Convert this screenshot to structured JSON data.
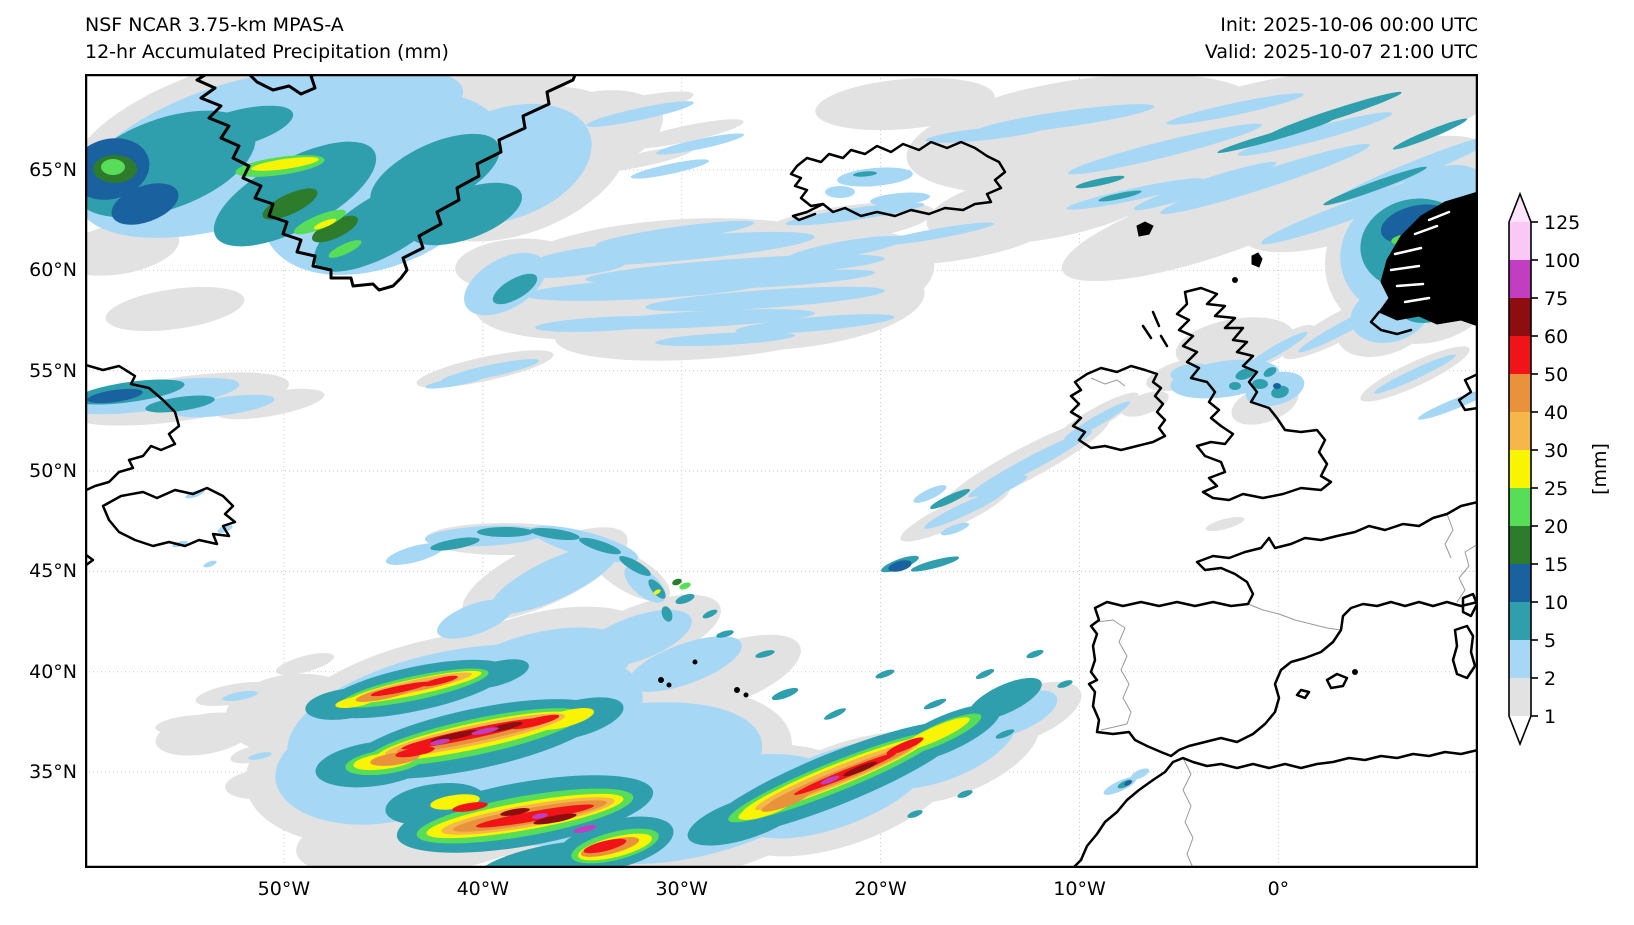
{
  "header": {
    "title_line1": "NSF NCAR 3.75-km MPAS-A",
    "title_line2": "12-hr Accumulated Precipitation (mm)",
    "init_label": "Init: 2025-10-06 00:00 UTC",
    "valid_label": "Valid: 2025-10-07 21:00 UTC"
  },
  "map": {
    "y_axis_ticks": [
      {
        "label": "65°N",
        "lat": 65
      },
      {
        "label": "60°N",
        "lat": 60
      },
      {
        "label": "55°N",
        "lat": 55
      },
      {
        "label": "50°N",
        "lat": 50
      },
      {
        "label": "45°N",
        "lat": 45
      },
      {
        "label": "40°N",
        "lat": 40
      },
      {
        "label": "35°N",
        "lat": 35
      }
    ],
    "x_axis_ticks": [
      {
        "label": "50°W",
        "lon": -50
      },
      {
        "label": "40°W",
        "lon": -40
      },
      {
        "label": "30°W",
        "lon": -30
      },
      {
        "label": "20°W",
        "lon": -20
      },
      {
        "label": "10°W",
        "lon": -10
      },
      {
        "label": "0°",
        "lon": 0
      }
    ],
    "precip_systems": [
      {
        "name": "greenland-west-coast",
        "max_band_mm": "25-30"
      },
      {
        "name": "labrador-coast-band",
        "max_band_mm": "10-15"
      },
      {
        "name": "mid-atlantic-stratiform-sheet",
        "max_band_mm": "2-5"
      },
      {
        "name": "iceland-and-norwegian-sea-streaks",
        "max_band_mm": "5-10"
      },
      {
        "name": "norway-coast",
        "max_band_mm": "25-30"
      },
      {
        "name": "irish-sea-patch",
        "max_band_mm": "10-15"
      },
      {
        "name": "southwest-ireland-front",
        "max_band_mm": "10-15"
      },
      {
        "name": "azores-banded-cyclone",
        "max_band_mm": "75-100"
      },
      {
        "name": "morocco-specks",
        "max_band_mm": "10-15"
      }
    ]
  },
  "colorbar": {
    "units": "[mm]",
    "levels": [
      1,
      2,
      5,
      10,
      15,
      20,
      25,
      30,
      40,
      50,
      60,
      75,
      100,
      125
    ],
    "segment_colors": [
      "#e2e2e2",
      "#a6d7f5",
      "#2f9fad",
      "#1a61a0",
      "#2c7c2c",
      "#57dd57",
      "#f8f402",
      "#f5b64a",
      "#e8933c",
      "#f01418",
      "#8e0d10",
      "#c13ec1",
      "#f9c8f4"
    ],
    "under_color": "#ffffff",
    "over_color": "#fce4fa"
  }
}
